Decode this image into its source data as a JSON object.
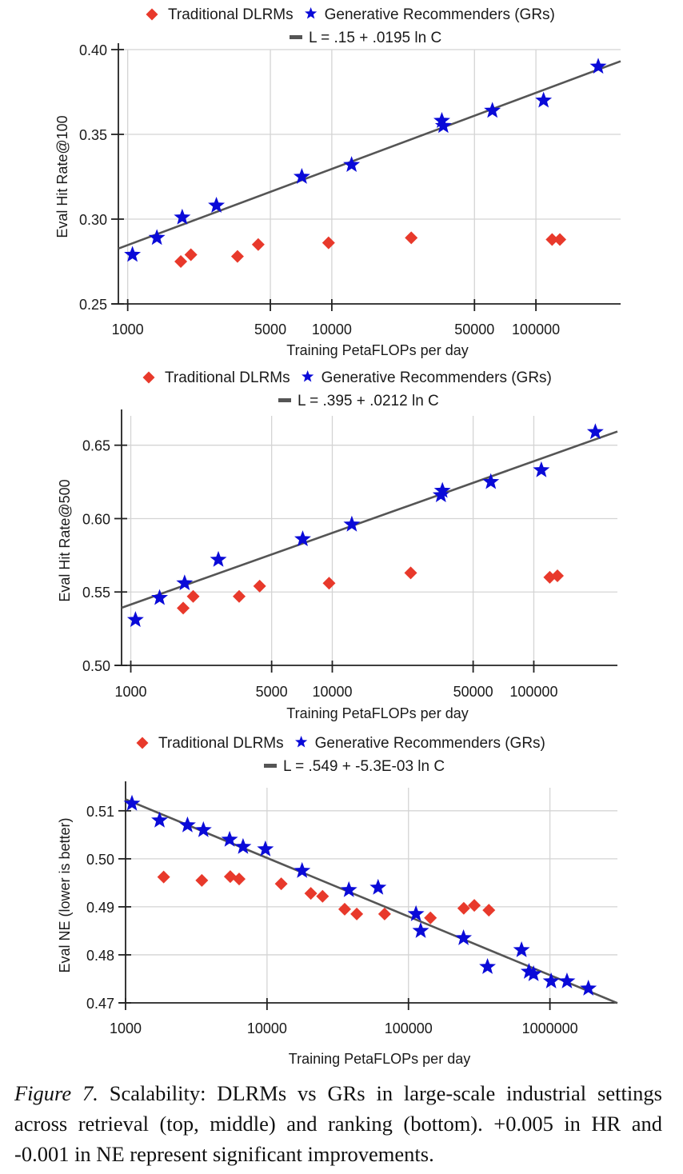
{
  "caption": {
    "figure_label": "Figure 7.",
    "text": " Scalability:  DLRMs vs GRs in large-scale industrial settings across retrieval (top, middle) and ranking (bottom). +0.005 in HR and -0.001 in NE represent significant improvements."
  },
  "colors": {
    "dlrm": "#e8392b",
    "gr": "#0a0ad8",
    "fit": "#555555"
  },
  "chart_data": [
    {
      "type": "scatter",
      "title": "",
      "xlabel": "Training PetaFLOPs per day",
      "ylabel": "Eval Hit Rate@100",
      "xscale": "log",
      "xlim": [
        900,
        260000
      ],
      "ylim": [
        0.25,
        0.4
      ],
      "xticks": [
        1000,
        5000,
        10000,
        50000,
        100000
      ],
      "xtick_labels": [
        "1000",
        "5000",
        "10000",
        "50000",
        "100000"
      ],
      "yticks": [
        0.25,
        0.3,
        0.35,
        0.4
      ],
      "ytick_labels": [
        "0.25",
        "0.30",
        "0.35",
        "0.40"
      ],
      "grid": true,
      "legend": {
        "placement": "top",
        "entries": [
          "Traditional DLRMs",
          "Generative Recommenders (GRs)"
        ],
        "fit_label": "L = .15 + .0195 ln C"
      },
      "fit": {
        "intercept": 0.15,
        "slope": 0.0195
      },
      "series": [
        {
          "name": "Traditional DLRMs",
          "marker": "diamond",
          "x": [
            1820,
            2040,
            3450,
            4360,
            9640,
            24500,
            120000,
            131000
          ],
          "y": [
            0.275,
            0.279,
            0.278,
            0.285,
            0.286,
            0.289,
            0.288,
            0.288
          ]
        },
        {
          "name": "Generative Recommenders (GRs)",
          "marker": "star",
          "x": [
            1055,
            1390,
            1850,
            2720,
            7130,
            12500,
            34600,
            35200,
            61200,
            109000,
            202000
          ],
          "y": [
            0.279,
            0.289,
            0.301,
            0.308,
            0.325,
            0.332,
            0.358,
            0.355,
            0.364,
            0.37,
            0.39
          ]
        }
      ]
    },
    {
      "type": "scatter",
      "title": "",
      "xlabel": "Training PetaFLOPs per day",
      "ylabel": "Eval Hit Rate@500",
      "xscale": "log",
      "xlim": [
        900,
        260000
      ],
      "ylim": [
        0.5,
        0.67
      ],
      "xticks": [
        1000,
        5000,
        10000,
        50000,
        100000
      ],
      "xtick_labels": [
        "1000",
        "5000",
        "10000",
        "50000",
        "100000"
      ],
      "yticks": [
        0.5,
        0.55,
        0.6,
        0.65
      ],
      "ytick_labels": [
        "0.50",
        "0.55",
        "0.60",
        "0.65"
      ],
      "grid": true,
      "legend": {
        "placement": "top",
        "entries": [
          "Traditional DLRMs",
          "Generative Recommenders (GRs)"
        ],
        "fit_label": "L = .395 + .0212 ln C"
      },
      "fit": {
        "intercept": 0.395,
        "slope": 0.0212
      },
      "series": [
        {
          "name": "Traditional DLRMs",
          "marker": "diamond",
          "x": [
            1820,
            2040,
            3450,
            4360,
            9640,
            24500,
            120000,
            131000
          ],
          "y": [
            0.539,
            0.547,
            0.547,
            0.554,
            0.556,
            0.563,
            0.56,
            0.561
          ]
        },
        {
          "name": "Generative Recommenders (GRs)",
          "marker": "star",
          "x": [
            1055,
            1390,
            1850,
            2720,
            7130,
            12500,
            34600,
            35200,
            61200,
            109000,
            202000
          ],
          "y": [
            0.531,
            0.546,
            0.556,
            0.572,
            0.586,
            0.596,
            0.616,
            0.619,
            0.625,
            0.633,
            0.659
          ]
        }
      ]
    },
    {
      "type": "scatter",
      "title": "",
      "xlabel": "Training PetaFLOPs per day",
      "ylabel": "Eval NE (lower is better)",
      "xscale": "log",
      "xlim": [
        1000,
        3000000
      ],
      "ylim": [
        0.47,
        0.5148
      ],
      "xticks": [
        1000,
        10000,
        100000,
        1000000
      ],
      "xtick_labels": [
        "1000",
        "10000",
        "100000",
        "1000000"
      ],
      "yticks": [
        0.47,
        0.48,
        0.49,
        0.5,
        0.51
      ],
      "ytick_labels": [
        "0.47",
        "0.48",
        "0.49",
        "0.50",
        "0.51"
      ],
      "grid": true,
      "legend": {
        "placement": "top",
        "entries": [
          "Traditional DLRMs",
          "Generative Recommenders (GRs)"
        ],
        "fit_label": "L = .549 + -5.3E-03 ln C"
      },
      "fit": {
        "intercept": 0.549,
        "slope": -0.0053
      },
      "series": [
        {
          "name": "Traditional DLRMs",
          "marker": "diamond",
          "x": [
            1860,
            3460,
            5500,
            6350,
            12600,
            20400,
            24700,
            35400,
            43100,
            67800,
            143000,
            246000,
            292000,
            370000
          ],
          "y": [
            0.4962,
            0.4955,
            0.4963,
            0.4958,
            0.4948,
            0.4928,
            0.4922,
            0.4895,
            0.4885,
            0.4885,
            0.4877,
            0.4897,
            0.4903,
            0.4893
          ]
        },
        {
          "name": "Generative Recommenders (GRs)",
          "marker": "star",
          "x": [
            1110,
            1740,
            2740,
            3550,
            5440,
            6770,
            9740,
            17700,
            37900,
            61000,
            113000,
            122000,
            245000,
            362000,
            630000,
            711000,
            766000,
            1020000,
            1320000,
            1870000
          ],
          "y": [
            0.5115,
            0.508,
            0.507,
            0.506,
            0.504,
            0.5025,
            0.502,
            0.4975,
            0.4935,
            0.494,
            0.4885,
            0.485,
            0.4835,
            0.4775,
            0.481,
            0.4765,
            0.476,
            0.4745,
            0.4745,
            0.473
          ]
        }
      ]
    }
  ]
}
